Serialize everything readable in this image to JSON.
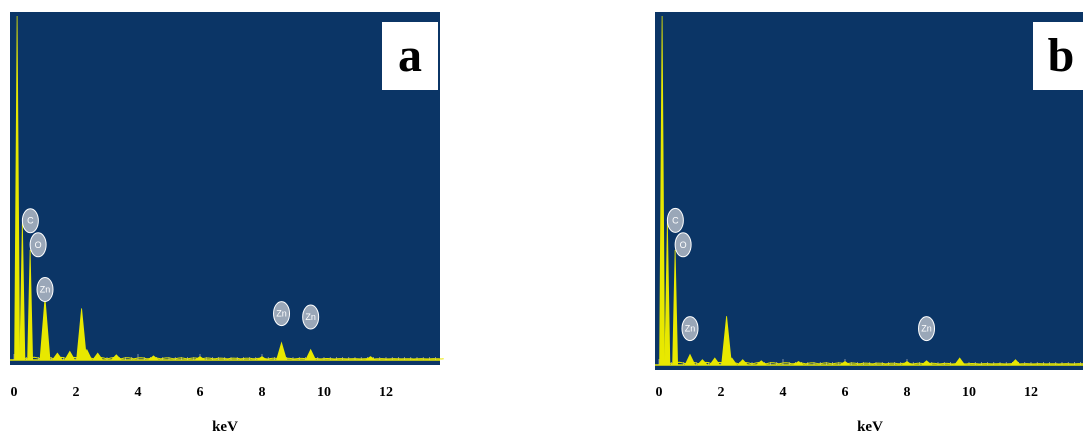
{
  "colors": {
    "plot_background": "#0b3566",
    "spectrum": "#e8e800",
    "badge_fill": "#9aa7b8",
    "label_box": "#ffffff"
  },
  "chart_data": [
    {
      "type": "bar",
      "panel_label": "a",
      "xlabel": "keV",
      "ylabel": "",
      "title": "",
      "xlim": [
        0,
        14
      ],
      "ylim": [
        0,
        100
      ],
      "x_ticks": [
        0,
        2,
        4,
        6,
        8,
        10,
        12
      ],
      "x_tick_labels": [
        "0",
        "2",
        "4",
        "6",
        "8",
        "10",
        "12"
      ],
      "grid": false,
      "legend": "none",
      "peak_labels": [
        {
          "text": "C",
          "x": 0.27,
          "y": 37
        },
        {
          "text": "O",
          "x": 0.52,
          "y": 30
        },
        {
          "text": "Zn",
          "x": 1.0,
          "y": 17
        },
        {
          "text": "Zn",
          "x": 8.63,
          "y": 10
        },
        {
          "text": "Zn",
          "x": 9.57,
          "y": 9
        }
      ],
      "series": [
        {
          "values": [
            {
              "x": 0.1,
              "y": 100
            },
            {
              "x": 0.27,
              "y": 40
            },
            {
              "x": 0.52,
              "y": 32
            },
            {
              "x": 1.0,
              "y": 18
            },
            {
              "x": 1.4,
              "y": 2
            },
            {
              "x": 1.8,
              "y": 2.5
            },
            {
              "x": 2.18,
              "y": 15
            },
            {
              "x": 2.35,
              "y": 3
            },
            {
              "x": 2.7,
              "y": 2
            },
            {
              "x": 3.3,
              "y": 1.5
            },
            {
              "x": 4.5,
              "y": 1.2
            },
            {
              "x": 6.0,
              "y": 1
            },
            {
              "x": 8.0,
              "y": 1
            },
            {
              "x": 8.63,
              "y": 5
            },
            {
              "x": 9.57,
              "y": 3
            },
            {
              "x": 11.5,
              "y": 1
            }
          ]
        }
      ]
    },
    {
      "type": "bar",
      "panel_label": "b",
      "xlabel": "keV",
      "ylabel": "",
      "title": "",
      "xlim": [
        0,
        14
      ],
      "ylim": [
        0,
        100
      ],
      "x_ticks": [
        0,
        2,
        4,
        6,
        8,
        10,
        12
      ],
      "x_tick_labels": [
        "0",
        "2",
        "4",
        "6",
        "8",
        "10",
        "12"
      ],
      "grid": false,
      "legend": "none",
      "peak_labels": [
        {
          "text": "C",
          "x": 0.27,
          "y": 38
        },
        {
          "text": "O",
          "x": 0.52,
          "y": 31
        },
        {
          "text": "Zn",
          "x": 1.0,
          "y": 7
        },
        {
          "text": "Zn",
          "x": 8.63,
          "y": 7
        }
      ],
      "series": [
        {
          "values": [
            {
              "x": 0.1,
              "y": 100
            },
            {
              "x": 0.27,
              "y": 41
            },
            {
              "x": 0.52,
              "y": 33
            },
            {
              "x": 1.0,
              "y": 3
            },
            {
              "x": 1.4,
              "y": 1.5
            },
            {
              "x": 1.8,
              "y": 2
            },
            {
              "x": 2.18,
              "y": 14
            },
            {
              "x": 2.35,
              "y": 2
            },
            {
              "x": 2.7,
              "y": 1.5
            },
            {
              "x": 3.3,
              "y": 1.2
            },
            {
              "x": 4.5,
              "y": 1
            },
            {
              "x": 6.0,
              "y": 1
            },
            {
              "x": 8.0,
              "y": 1
            },
            {
              "x": 8.63,
              "y": 1.2
            },
            {
              "x": 9.7,
              "y": 2
            },
            {
              "x": 11.5,
              "y": 1.5
            }
          ]
        }
      ]
    }
  ]
}
